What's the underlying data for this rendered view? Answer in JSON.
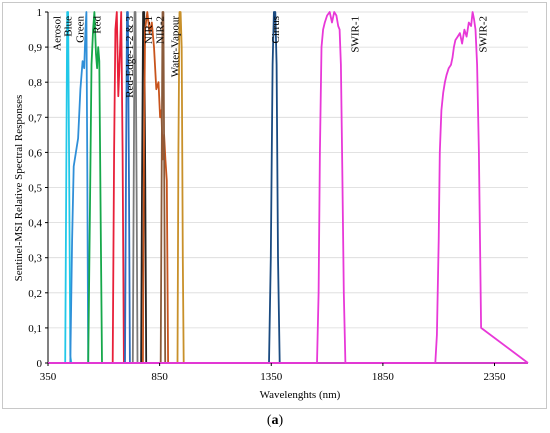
{
  "caption": {
    "open": "(",
    "letter": "a",
    "close": ")"
  },
  "chart_data": {
    "type": "line",
    "xlabel": "Wavelenghts  (nm)",
    "ylabel": "Sentinel-MSI  Relative  Spectral Responses",
    "xlim": [
      350,
      2500
    ],
    "ylim": [
      0,
      1
    ],
    "x_ticks": [
      "350",
      "850",
      "1350",
      "1850",
      "2350"
    ],
    "x_tick_values": [
      350,
      850,
      1350,
      1850,
      2350
    ],
    "y_ticks": [
      "0",
      "0,1",
      "0,2",
      "0,3",
      "0,4",
      "0,5",
      "0,6",
      "0,7",
      "0,8",
      "0,9",
      "1"
    ],
    "y_tick_values": [
      0,
      0.1,
      0.2,
      0.3,
      0.4,
      0.5,
      0.6,
      0.7,
      0.8,
      0.9,
      1.0
    ],
    "grid": "horizontal",
    "series": [
      {
        "name": "Aerosol",
        "color": "#22c8e8",
        "x": [
          350,
          427,
          432,
          436,
          440,
          444,
          450,
          455,
          2500
        ],
        "y": [
          0,
          0,
          0.55,
          1.0,
          1.0,
          0.62,
          0.02,
          0,
          0
        ]
      },
      {
        "name": "Blue",
        "color": "#2f8fd8",
        "x": [
          350,
          450,
          458,
          465,
          475,
          485,
          495,
          505,
          512,
          518,
          522,
          526,
          530,
          2500
        ],
        "y": [
          0,
          0,
          0.35,
          0.56,
          0.6,
          0.64,
          0.78,
          0.86,
          0.84,
          0.95,
          1.0,
          0.55,
          0,
          0
        ]
      },
      {
        "name": "Green",
        "color": "#16a84a",
        "x": [
          350,
          530,
          538,
          545,
          552,
          558,
          565,
          570,
          575,
          580,
          586,
          592,
          2500
        ],
        "y": [
          0,
          0,
          0.45,
          0.85,
          0.95,
          1.0,
          0.88,
          0.84,
          0.9,
          0.86,
          0.4,
          0,
          0
        ]
      },
      {
        "name": "Red",
        "color": "#e8203a",
        "x": [
          350,
          640,
          646,
          652,
          658,
          665,
          672,
          678,
          684,
          690,
          2500
        ],
        "y": [
          0,
          0,
          0.6,
          0.95,
          1.0,
          0.76,
          0.88,
          1.0,
          0.6,
          0,
          0
        ]
      },
      {
        "name": "Red-Edge-1",
        "color": "#2a6fc0",
        "x": [
          350,
          695,
          699,
          704,
          708,
          713,
          717,
          2500
        ],
        "y": [
          0,
          0,
          0.5,
          1.0,
          1.0,
          0.5,
          0,
          0
        ]
      },
      {
        "name": "Red-Edge-2",
        "color": "#7a7a7a",
        "x": [
          350,
          730,
          734,
          738,
          742,
          747,
          751,
          2500
        ],
        "y": [
          0,
          0,
          0.5,
          1.0,
          1.0,
          0.5,
          0,
          0
        ]
      },
      {
        "name": "Red-Edge-3",
        "color": "#222222",
        "x": [
          350,
          767,
          771,
          776,
          781,
          786,
          790,
          2500
        ],
        "y": [
          0,
          0,
          0.5,
          1.0,
          1.0,
          0.5,
          0,
          0
        ]
      },
      {
        "name": "NIR-1",
        "color": "#c8541c",
        "x": [
          350,
          775,
          780,
          785,
          795,
          805,
          815,
          825,
          835,
          845,
          852,
          858,
          864,
          870,
          876,
          882,
          888,
          2500
        ],
        "y": [
          0,
          0,
          0.6,
          0.95,
          1.0,
          0.94,
          0.97,
          0.9,
          0.78,
          0.8,
          0.7,
          0.72,
          0.58,
          0.65,
          0.58,
          0.52,
          0,
          0
        ]
      },
      {
        "name": "NIR-2",
        "color": "#8a5a3a",
        "x": [
          350,
          855,
          859,
          863,
          867,
          871,
          875,
          2500
        ],
        "y": [
          0,
          0,
          0.5,
          1.0,
          1.0,
          0.5,
          0,
          0
        ]
      },
      {
        "name": "Water-Vapour",
        "color": "#c8902a",
        "x": [
          350,
          930,
          934,
          939,
          944,
          949,
          954,
          958,
          2500
        ],
        "y": [
          0,
          0,
          0.6,
          1.0,
          1.0,
          0.9,
          0.3,
          0,
          0
        ]
      },
      {
        "name": "Cirrus",
        "color": "#1a4a80",
        "x": [
          350,
          1340,
          1348,
          1356,
          1362,
          1368,
          1374,
          1380,
          1388,
          2500
        ],
        "y": [
          0,
          0,
          0.3,
          0.85,
          1.0,
          1.0,
          0.85,
          0.3,
          0,
          0
        ]
      },
      {
        "name": "SWIR-1",
        "color": "#e838d8",
        "x": [
          350,
          1555,
          1562,
          1568,
          1575,
          1582,
          1590,
          1600,
          1612,
          1622,
          1632,
          1642,
          1650,
          1656,
          1662,
          1668,
          1675,
          1682,
          2500
        ],
        "y": [
          0,
          0,
          0.2,
          0.6,
          0.9,
          0.95,
          0.97,
          0.99,
          1.0,
          0.97,
          1.0,
          0.99,
          0.96,
          0.95,
          0.85,
          0.55,
          0.2,
          0,
          0
        ]
      },
      {
        "name": "SWIR-2",
        "color": "#e838d8",
        "x": [
          350,
          2085,
          2092,
          2100,
          2105,
          2112,
          2120,
          2128,
          2135,
          2145,
          2155,
          2162,
          2168,
          2175,
          2185,
          2195,
          2205,
          2215,
          2225,
          2235,
          2245,
          2252,
          2258,
          2265,
          2272,
          2280,
          2290,
          2500
        ],
        "y": [
          0,
          0,
          0.08,
          0.35,
          0.6,
          0.72,
          0.77,
          0.8,
          0.82,
          0.84,
          0.85,
          0.87,
          0.9,
          0.92,
          0.93,
          0.94,
          0.91,
          0.95,
          0.93,
          0.97,
          0.96,
          1.0,
          0.98,
          0.95,
          0.85,
          0.6,
          0.1,
          0
        ]
      }
    ],
    "labels": [
      {
        "text": "Aerosol",
        "x": 405
      },
      {
        "text": "Blue",
        "x": 455
      },
      {
        "text": "Green",
        "x": 510
      },
      {
        "text": "Red",
        "x": 585
      },
      {
        "text": "Red-Edge-1-2 & 3",
        "x": 730
      },
      {
        "text": "NIR-1",
        "x": 815
      },
      {
        "text": "NIR-2",
        "x": 868
      },
      {
        "text": "Water-Vapour",
        "x": 935
      },
      {
        "text": "Cirrus",
        "x": 1385
      },
      {
        "text": "SWIR-1",
        "x": 1740
      },
      {
        "text": "SWIR-2",
        "x": 2315
      }
    ]
  }
}
